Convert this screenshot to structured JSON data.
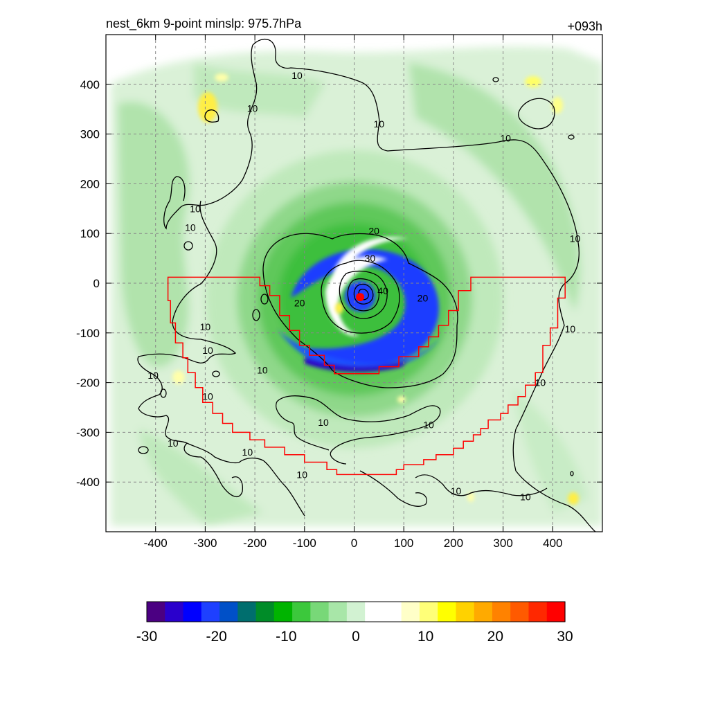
{
  "chart_data": {
    "type": "heatmap",
    "title_left": "nest_6km  9-point minslp: 975.7hPa",
    "title_right": "+093h",
    "xlim": [
      -500,
      500
    ],
    "ylim": [
      -500,
      500
    ],
    "x_ticks": [
      -400,
      -300,
      -200,
      -100,
      0,
      100,
      200,
      300,
      400
    ],
    "y_ticks": [
      -400,
      -300,
      -200,
      -100,
      0,
      100,
      200,
      300,
      400
    ],
    "grid": true,
    "center_marker": {
      "x": 12,
      "y": -28,
      "color": "#ff0000"
    },
    "colorbar": {
      "min": -30,
      "max": 30,
      "ticks": [
        -30,
        -20,
        -10,
        0,
        10,
        20,
        30
      ],
      "colors": [
        "#4b0082",
        "#2a00cc",
        "#0000ff",
        "#1e40ff",
        "#0050c8",
        "#006e6e",
        "#008c28",
        "#00b400",
        "#3cc83c",
        "#78d878",
        "#a8e6a8",
        "#d2f2d2",
        "#ffffff",
        "#ffffff",
        "#ffffc8",
        "#ffff78",
        "#ffff00",
        "#ffd200",
        "#ffaa00",
        "#ff8200",
        "#ff5a00",
        "#ff2800",
        "#ff0000"
      ]
    },
    "contour_labels": [
      {
        "text": "10",
        "x": -115,
        "y": 418
      },
      {
        "text": "10",
        "x": -205,
        "y": 352
      },
      {
        "text": "10",
        "x": 50,
        "y": 320
      },
      {
        "text": "10",
        "x": 305,
        "y": 292
      },
      {
        "text": "10",
        "x": -320,
        "y": 150
      },
      {
        "text": "10",
        "x": -330,
        "y": 112
      },
      {
        "text": "10",
        "x": 445,
        "y": 90
      },
      {
        "text": "20",
        "x": 40,
        "y": 105
      },
      {
        "text": "30",
        "x": 32,
        "y": 50
      },
      {
        "text": "40",
        "x": 58,
        "y": -15
      },
      {
        "text": "20",
        "x": 138,
        "y": -30
      },
      {
        "text": "20",
        "x": -110,
        "y": -40
      },
      {
        "text": "10",
        "x": 435,
        "y": -92
      },
      {
        "text": "10",
        "x": -300,
        "y": -88
      },
      {
        "text": "10",
        "x": -295,
        "y": -135
      },
      {
        "text": "10",
        "x": -185,
        "y": -175
      },
      {
        "text": "10",
        "x": -405,
        "y": -185
      },
      {
        "text": "10",
        "x": 375,
        "y": -200
      },
      {
        "text": "10",
        "x": -295,
        "y": -228
      },
      {
        "text": "10",
        "x": -62,
        "y": -280
      },
      {
        "text": "10",
        "x": 150,
        "y": -285
      },
      {
        "text": "10",
        "x": -365,
        "y": -322
      },
      {
        "text": "10",
        "x": -215,
        "y": -340
      },
      {
        "text": "10",
        "x": -105,
        "y": -385
      },
      {
        "text": "10",
        "x": 205,
        "y": -418
      },
      {
        "text": "10",
        "x": 345,
        "y": -430
      }
    ],
    "red_boundary": [
      [
        -375,
        12
      ],
      [
        -190,
        12
      ],
      [
        -190,
        -5
      ],
      [
        -170,
        -5
      ],
      [
        -170,
        -25
      ],
      [
        -150,
        -25
      ],
      [
        -150,
        -65
      ],
      [
        -130,
        -65
      ],
      [
        -130,
        -95
      ],
      [
        -110,
        -95
      ],
      [
        -110,
        -125
      ],
      [
        -90,
        -125
      ],
      [
        -90,
        -145
      ],
      [
        -60,
        -145
      ],
      [
        -60,
        -165
      ],
      [
        -40,
        -165
      ],
      [
        -40,
        -182
      ],
      [
        50,
        -182
      ],
      [
        50,
        -168
      ],
      [
        90,
        -168
      ],
      [
        90,
        -148
      ],
      [
        130,
        -148
      ],
      [
        130,
        -128
      ],
      [
        150,
        -128
      ],
      [
        150,
        -108
      ],
      [
        170,
        -108
      ],
      [
        170,
        -85
      ],
      [
        190,
        -85
      ],
      [
        190,
        -55
      ],
      [
        210,
        -55
      ],
      [
        210,
        -15
      ],
      [
        235,
        -15
      ],
      [
        235,
        12
      ],
      [
        425,
        12
      ],
      [
        425,
        -30
      ],
      [
        410,
        -30
      ],
      [
        410,
        -90
      ],
      [
        395,
        -90
      ],
      [
        395,
        -125
      ],
      [
        380,
        -125
      ],
      [
        380,
        -180
      ],
      [
        365,
        -180
      ],
      [
        365,
        -205
      ],
      [
        345,
        -205
      ],
      [
        345,
        -228
      ],
      [
        330,
        -228
      ],
      [
        330,
        -245
      ],
      [
        310,
        -245
      ],
      [
        310,
        -262
      ],
      [
        295,
        -262
      ],
      [
        295,
        -275
      ],
      [
        270,
        -275
      ],
      [
        270,
        -292
      ],
      [
        255,
        -292
      ],
      [
        255,
        -305
      ],
      [
        240,
        -305
      ],
      [
        240,
        -318
      ],
      [
        220,
        -318
      ],
      [
        220,
        -332
      ],
      [
        200,
        -332
      ],
      [
        200,
        -345
      ],
      [
        165,
        -345
      ],
      [
        165,
        -355
      ],
      [
        140,
        -355
      ],
      [
        140,
        -365
      ],
      [
        100,
        -365
      ],
      [
        100,
        -375
      ],
      [
        85,
        -375
      ],
      [
        85,
        -385
      ],
      [
        -35,
        -385
      ],
      [
        -35,
        -375
      ],
      [
        -55,
        -375
      ],
      [
        -55,
        -360
      ],
      [
        -100,
        -360
      ],
      [
        -100,
        -345
      ],
      [
        -140,
        -345
      ],
      [
        -140,
        -330
      ],
      [
        -180,
        -330
      ],
      [
        -180,
        -315
      ],
      [
        -210,
        -315
      ],
      [
        -210,
        -300
      ],
      [
        -245,
        -300
      ],
      [
        -245,
        -282
      ],
      [
        -265,
        -282
      ],
      [
        -265,
        -262
      ],
      [
        -285,
        -262
      ],
      [
        -285,
        -240
      ],
      [
        -305,
        -240
      ],
      [
        -305,
        -210
      ],
      [
        -320,
        -210
      ],
      [
        -320,
        -180
      ],
      [
        -335,
        -180
      ],
      [
        -335,
        -150
      ],
      [
        -345,
        -150
      ],
      [
        -345,
        -120
      ],
      [
        -360,
        -120
      ],
      [
        -360,
        -80
      ],
      [
        -370,
        -80
      ],
      [
        -370,
        -35
      ],
      [
        -375,
        -35
      ],
      [
        -375,
        12
      ]
    ]
  }
}
